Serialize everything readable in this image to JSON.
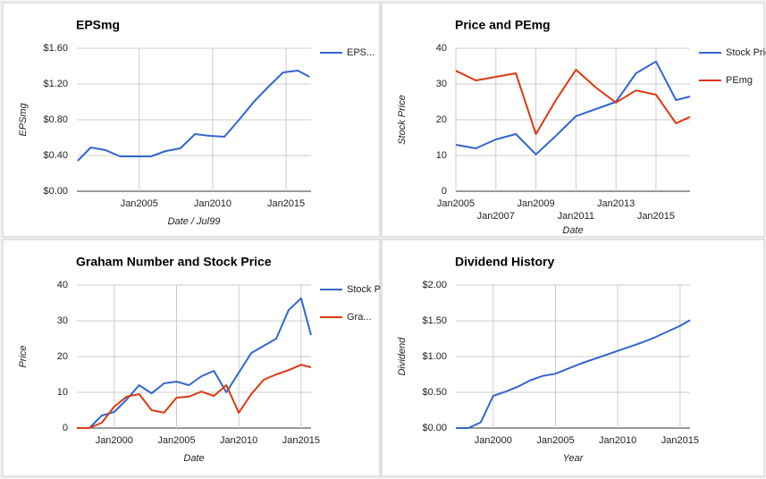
{
  "chart_data": [
    {
      "type": "line",
      "title": "EPSmg",
      "x_label": "Date / Jul99",
      "y_label": "EPSmg",
      "x": [
        2000.8,
        2001.7,
        2002.7,
        2003.7,
        2004.7,
        2005.8,
        2006.8,
        2007.8,
        2008.8,
        2009.8,
        2010.8,
        2011.8,
        2012.8,
        2013.8,
        2014.8,
        2015.8,
        2016.6
      ],
      "series": [
        {
          "name": "EPS...",
          "color": "#3366cc",
          "values": [
            0.34,
            0.49,
            0.46,
            0.39,
            0.39,
            0.39,
            0.45,
            0.48,
            0.64,
            0.62,
            0.61,
            0.8,
            1.0,
            1.17,
            1.33,
            1.35,
            1.28
          ]
        }
      ],
      "xlim": [
        2000.75,
        2016.7
      ],
      "ylim": [
        0,
        1.6
      ],
      "xticks": [
        {
          "value": 2005,
          "label": "Jan2005"
        },
        {
          "value": 2010,
          "label": "Jan2010"
        },
        {
          "value": 2015,
          "label": "Jan2015"
        }
      ],
      "yticks": [
        {
          "value": 0,
          "label": "$0.00"
        },
        {
          "value": 0.4,
          "label": "$0.40"
        },
        {
          "value": 0.8,
          "label": "$0.80"
        },
        {
          "value": 1.2,
          "label": "$1.20"
        },
        {
          "value": 1.6,
          "label": "$1.60"
        }
      ],
      "grid": true,
      "legend": "right"
    },
    {
      "type": "line",
      "title": "Price and PEmg",
      "x_label": "Date",
      "y_label": "Stock Price",
      "x": [
        2005,
        2006,
        2007,
        2008,
        2009,
        2010,
        2011,
        2012,
        2013,
        2014,
        2015,
        2016,
        2016.7
      ],
      "series": [
        {
          "name": "Stock Price",
          "color": "#3366cc",
          "values": [
            13,
            12,
            14.5,
            16,
            10.3,
            15.5,
            21,
            23,
            25,
            33,
            36.3,
            25.5,
            26.5
          ]
        },
        {
          "name": "PEmg",
          "color": "#dc3912",
          "values": [
            33.7,
            31,
            32,
            33,
            16,
            25.5,
            34,
            29,
            24.8,
            28.2,
            27,
            19,
            20.8
          ]
        }
      ],
      "xlim": [
        2005,
        2016.7
      ],
      "ylim": [
        0,
        40
      ],
      "xticks": [
        {
          "value": 2005,
          "label": "Jan2005"
        },
        {
          "value": 2007,
          "label": "Jan2007"
        },
        {
          "value": 2009,
          "label": "Jan2009"
        },
        {
          "value": 2011,
          "label": "Jan2011"
        },
        {
          "value": 2013,
          "label": "Jan2013"
        },
        {
          "value": 2015,
          "label": "Jan2015"
        }
      ],
      "yticks": [
        0,
        10,
        20,
        30,
        40
      ],
      "grid": true,
      "legend": "right"
    },
    {
      "type": "line",
      "title": "Graham Number and Stock Price",
      "x_label": "Date",
      "y_label": "Price",
      "x": [
        1997,
        1998,
        1999,
        2000,
        2001,
        2002,
        2003,
        2004,
        2005,
        2006,
        2007,
        2008,
        2009,
        2010,
        2011,
        2012,
        2013,
        2014,
        2015,
        2015.8
      ],
      "series": [
        {
          "name": "Stock Price",
          "color": "#3366cc",
          "values": [
            0,
            0,
            3.5,
            4.5,
            8,
            12,
            9.7,
            12.5,
            13,
            12,
            14.5,
            16,
            10,
            15.5,
            21,
            23,
            25,
            33,
            36.3,
            26
          ]
        },
        {
          "name": "Gra...",
          "color": "#dc3912",
          "values": [
            0,
            0,
            1.5,
            6,
            8.8,
            9.5,
            5,
            4.3,
            8.5,
            8.8,
            10.2,
            9,
            12,
            4.3,
            9.5,
            13.5,
            15,
            16.2,
            17.7,
            17
          ]
        }
      ],
      "xlim": [
        1997,
        2015.8
      ],
      "ylim": [
        0,
        40
      ],
      "xticks": [
        {
          "value": 2000,
          "label": "Jan2000"
        },
        {
          "value": 2005,
          "label": "Jan2005"
        },
        {
          "value": 2010,
          "label": "Jan2010"
        },
        {
          "value": 2015,
          "label": "Jan2015"
        }
      ],
      "yticks": [
        0,
        10,
        20,
        30,
        40
      ],
      "grid": true,
      "legend": "right"
    },
    {
      "type": "line",
      "title": "Dividend History",
      "x_label": "Year",
      "y_label": "Dividend",
      "x": [
        1997,
        1998,
        1999,
        2000,
        2001,
        2002,
        2003,
        2004,
        2005,
        2006,
        2007,
        2008,
        2009,
        2010,
        2011,
        2012,
        2013,
        2014,
        2015,
        2015.8
      ],
      "series": [
        {
          "name": "Dividend",
          "color": "#3366cc",
          "values": [
            0,
            0,
            0.08,
            0.45,
            0.51,
            0.58,
            0.67,
            0.73,
            0.76,
            0.83,
            0.9,
            0.96,
            1.02,
            1.08,
            1.14,
            1.2,
            1.27,
            1.35,
            1.43,
            1.51
          ]
        }
      ],
      "xlim": [
        1997,
        2015.8
      ],
      "ylim": [
        0,
        2
      ],
      "xticks": [
        {
          "value": 2000,
          "label": "Jan2000"
        },
        {
          "value": 2005,
          "label": "Jan2005"
        },
        {
          "value": 2010,
          "label": "Jan2010"
        },
        {
          "value": 2015,
          "label": "Jan2015"
        }
      ],
      "yticks": [
        {
          "value": 0,
          "label": "$0.00"
        },
        {
          "value": 0.5,
          "label": "$0.50"
        },
        {
          "value": 1,
          "label": "$1.00"
        },
        {
          "value": 1.5,
          "label": "$1.50"
        },
        {
          "value": 2,
          "label": "$2.00"
        }
      ],
      "grid": true,
      "legend": "none"
    }
  ]
}
